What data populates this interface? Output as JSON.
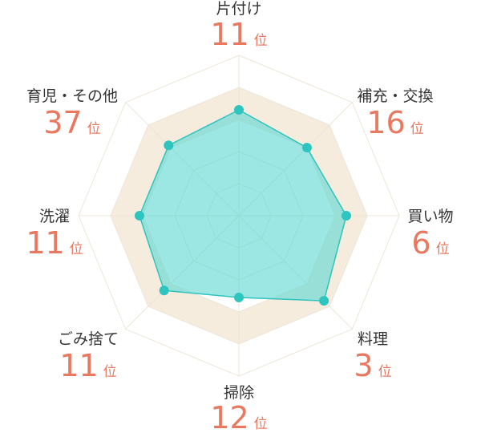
{
  "chart_data": {
    "type": "radar",
    "title": "",
    "rank_unit": "位",
    "max_rank": 40,
    "categories": [
      {
        "label": "片付け",
        "rank": 11
      },
      {
        "label": "補充・交換",
        "rank": 16
      },
      {
        "label": "買い物",
        "rank": 6
      },
      {
        "label": "料理",
        "rank": 3
      },
      {
        "label": "掃除",
        "rank": 12
      },
      {
        "label": "ごみ捨て",
        "rank": 11
      },
      {
        "label": "洗濯",
        "rank": 11
      },
      {
        "label": "育児・その他",
        "rank": 37
      }
    ],
    "series": [
      {
        "values": [
          0.66,
          0.6,
          0.67,
          0.75,
          0.51,
          0.66,
          0.62,
          0.62
        ]
      }
    ],
    "grid_levels": 5,
    "highlight_band": [
      0.6,
      0.8
    ]
  },
  "colors": {
    "series_fill": "#5fd8d4",
    "series_stroke": "#2ec4c0",
    "series_point": "#2ec4c0",
    "grid_line": "#ece6d8",
    "band_fill": "#f5ecdd",
    "rank_text": "#e8785f",
    "label_text": "#333333"
  }
}
